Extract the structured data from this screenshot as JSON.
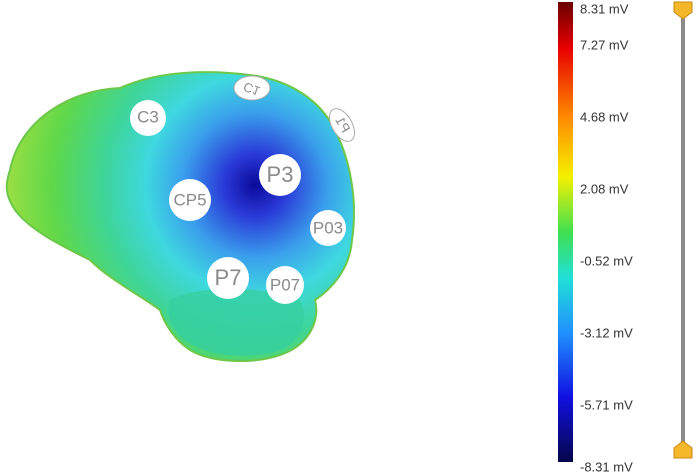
{
  "electrodes": [
    {
      "label": "C3"
    },
    {
      "label": "CP5"
    },
    {
      "label": "P3"
    },
    {
      "label": "P03"
    },
    {
      "label": "P7"
    },
    {
      "label": "P07"
    },
    {
      "label": "C1"
    },
    {
      "label": "P1"
    }
  ],
  "colorbar": {
    "labels": [
      "8.31 mV",
      "7.27 mV",
      "4.68 mV",
      "2.08 mV",
      "-0.52 mV",
      "-3.12 mV",
      "-5.71 mV",
      "-8.31 mV"
    ]
  }
}
